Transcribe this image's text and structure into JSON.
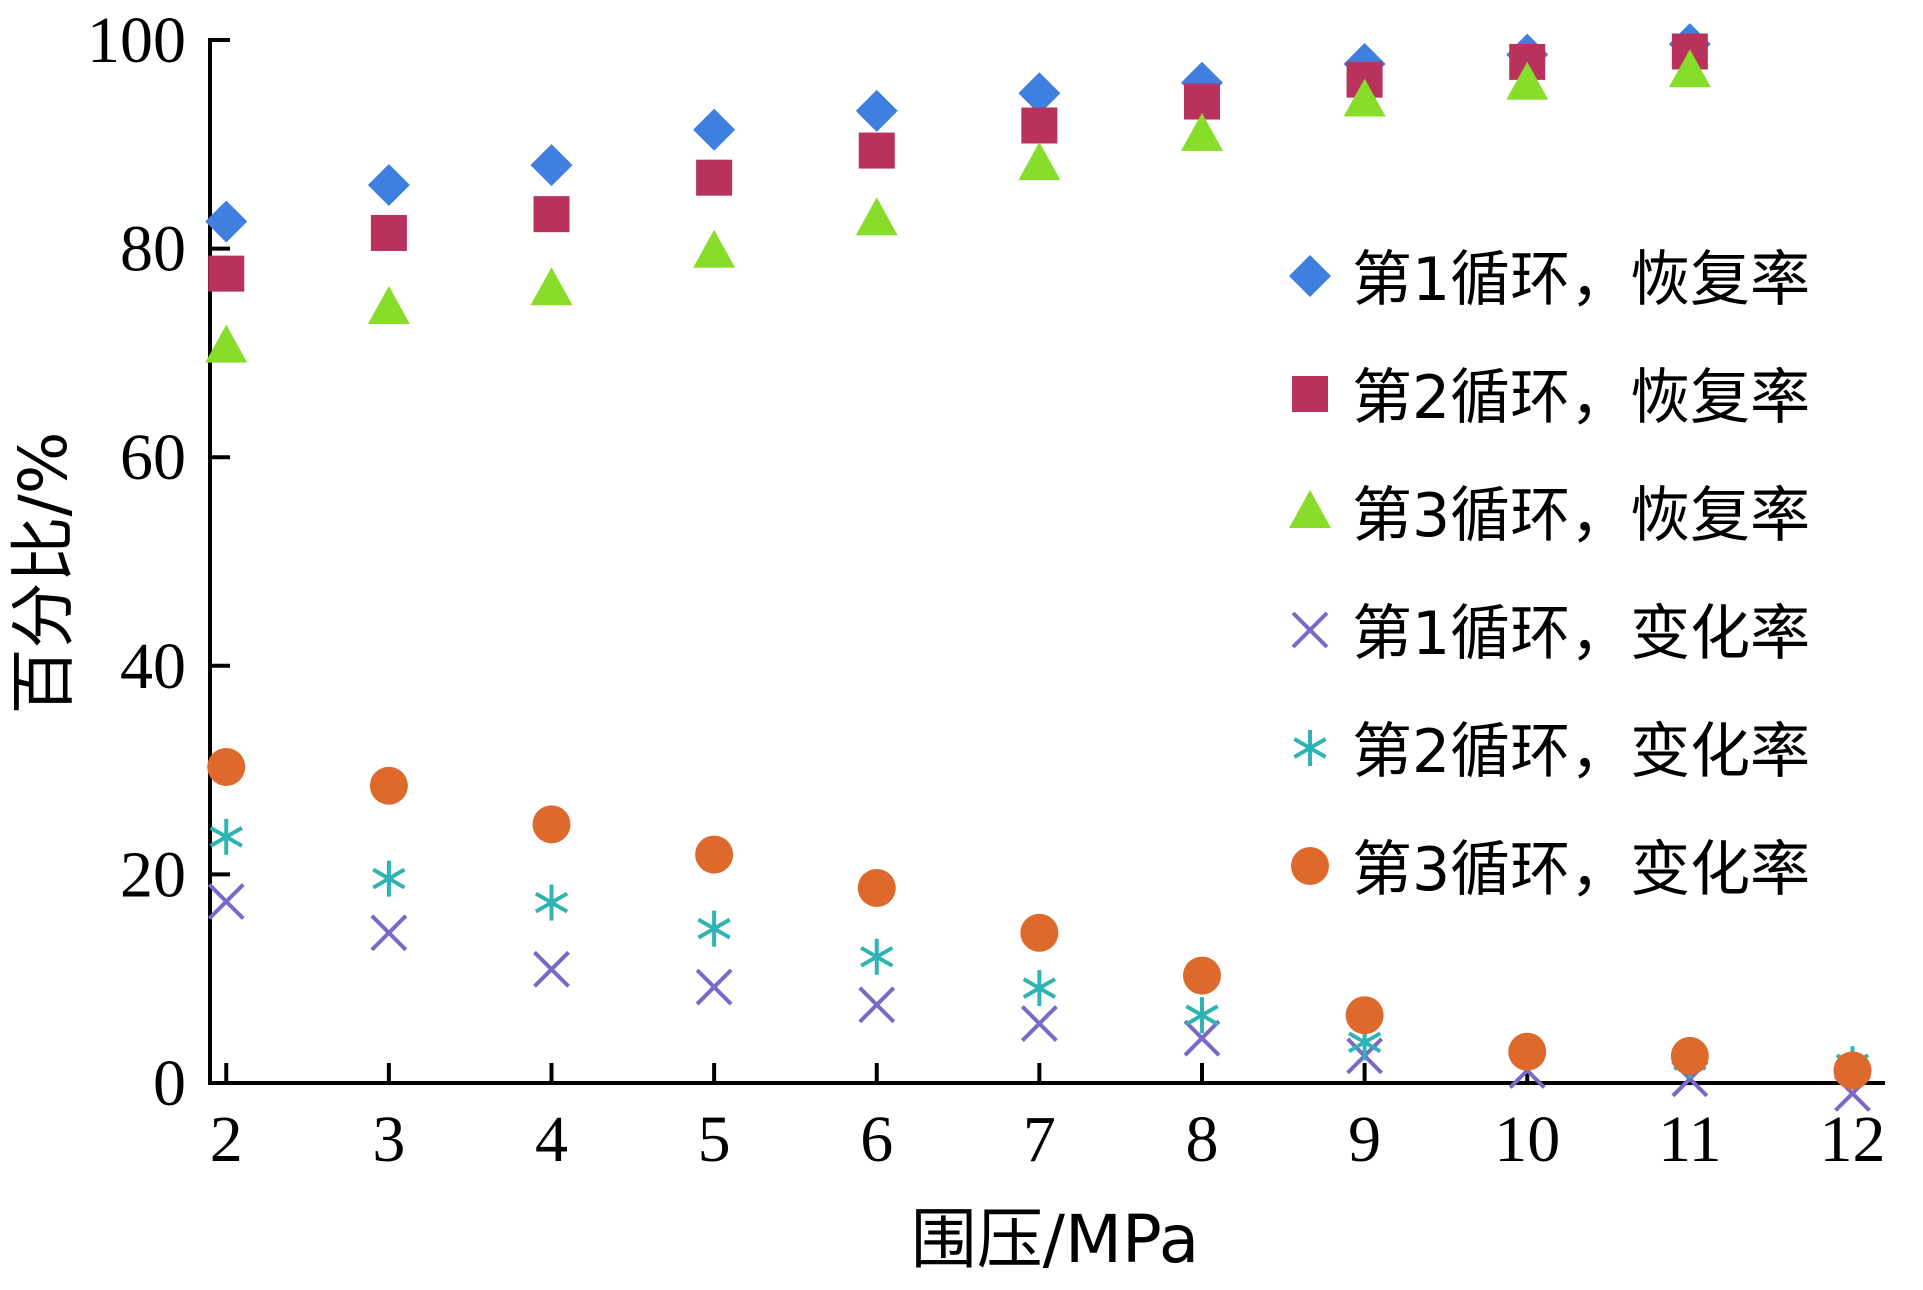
{
  "chart_data": {
    "type": "scatter",
    "title": "",
    "xlabel": "围压/MPa",
    "ylabel": "百分比/%",
    "xlim": [
      1.9,
      12.2
    ],
    "ylim": [
      0,
      100
    ],
    "xticks": [
      2,
      3,
      4,
      5,
      6,
      7,
      8,
      9,
      10,
      11,
      12
    ],
    "yticks": [
      0,
      20,
      40,
      60,
      80,
      100
    ],
    "grid": false,
    "legend_position": "right",
    "series": [
      {
        "name": "第1循环，恢复率",
        "marker": "diamond",
        "color": "#3f7fe0",
        "x": [
          2,
          3,
          4,
          5,
          6,
          7,
          8,
          9,
          10,
          11
        ],
        "y": [
          82.6,
          86.1,
          88.0,
          91.4,
          93.2,
          94.9,
          95.9,
          97.7,
          98.6,
          99.6
        ]
      },
      {
        "name": "第2循环，恢复率",
        "marker": "square",
        "color": "#b8325c",
        "x": [
          2,
          3,
          4,
          5,
          6,
          7,
          8,
          9,
          10,
          11
        ],
        "y": [
          77.6,
          81.5,
          83.3,
          86.8,
          89.4,
          91.8,
          94.1,
          96.2,
          97.9,
          98.9
        ]
      },
      {
        "name": "第3循环，恢复率",
        "marker": "triangle",
        "color": "#88dd2a",
        "x": [
          2,
          3,
          4,
          5,
          6,
          7,
          8,
          9,
          10,
          11
        ],
        "y": [
          70.6,
          74.3,
          76.1,
          79.7,
          82.8,
          88.1,
          90.9,
          94.2,
          95.8,
          97.0
        ]
      },
      {
        "name": "第1循环，变化率",
        "marker": "x",
        "color": "#7b68c8",
        "x": [
          2,
          3,
          4,
          5,
          6,
          7,
          8,
          9,
          10,
          11,
          12
        ],
        "y": [
          17.4,
          14.4,
          10.9,
          9.2,
          7.5,
          5.7,
          4.3,
          2.6,
          1.2,
          0.4,
          -1.0
        ]
      },
      {
        "name": "第2循环，变化率",
        "marker": "asterisk",
        "color": "#2fb3b3",
        "x": [
          2,
          3,
          4,
          5,
          6,
          7,
          8,
          9,
          10,
          11,
          12
        ],
        "y": [
          23.6,
          19.6,
          17.3,
          14.8,
          12.1,
          9.1,
          6.5,
          3.9,
          2.9,
          2.2,
          1.8
        ]
      },
      {
        "name": "第3循环，变化率",
        "marker": "circle",
        "color": "#dd6a2c",
        "x": [
          2,
          3,
          4,
          5,
          6,
          7,
          8,
          9,
          10,
          11,
          12
        ],
        "y": [
          30.3,
          28.5,
          24.8,
          21.9,
          18.7,
          14.4,
          10.3,
          6.5,
          3.0,
          2.6,
          1.2
        ]
      }
    ]
  }
}
